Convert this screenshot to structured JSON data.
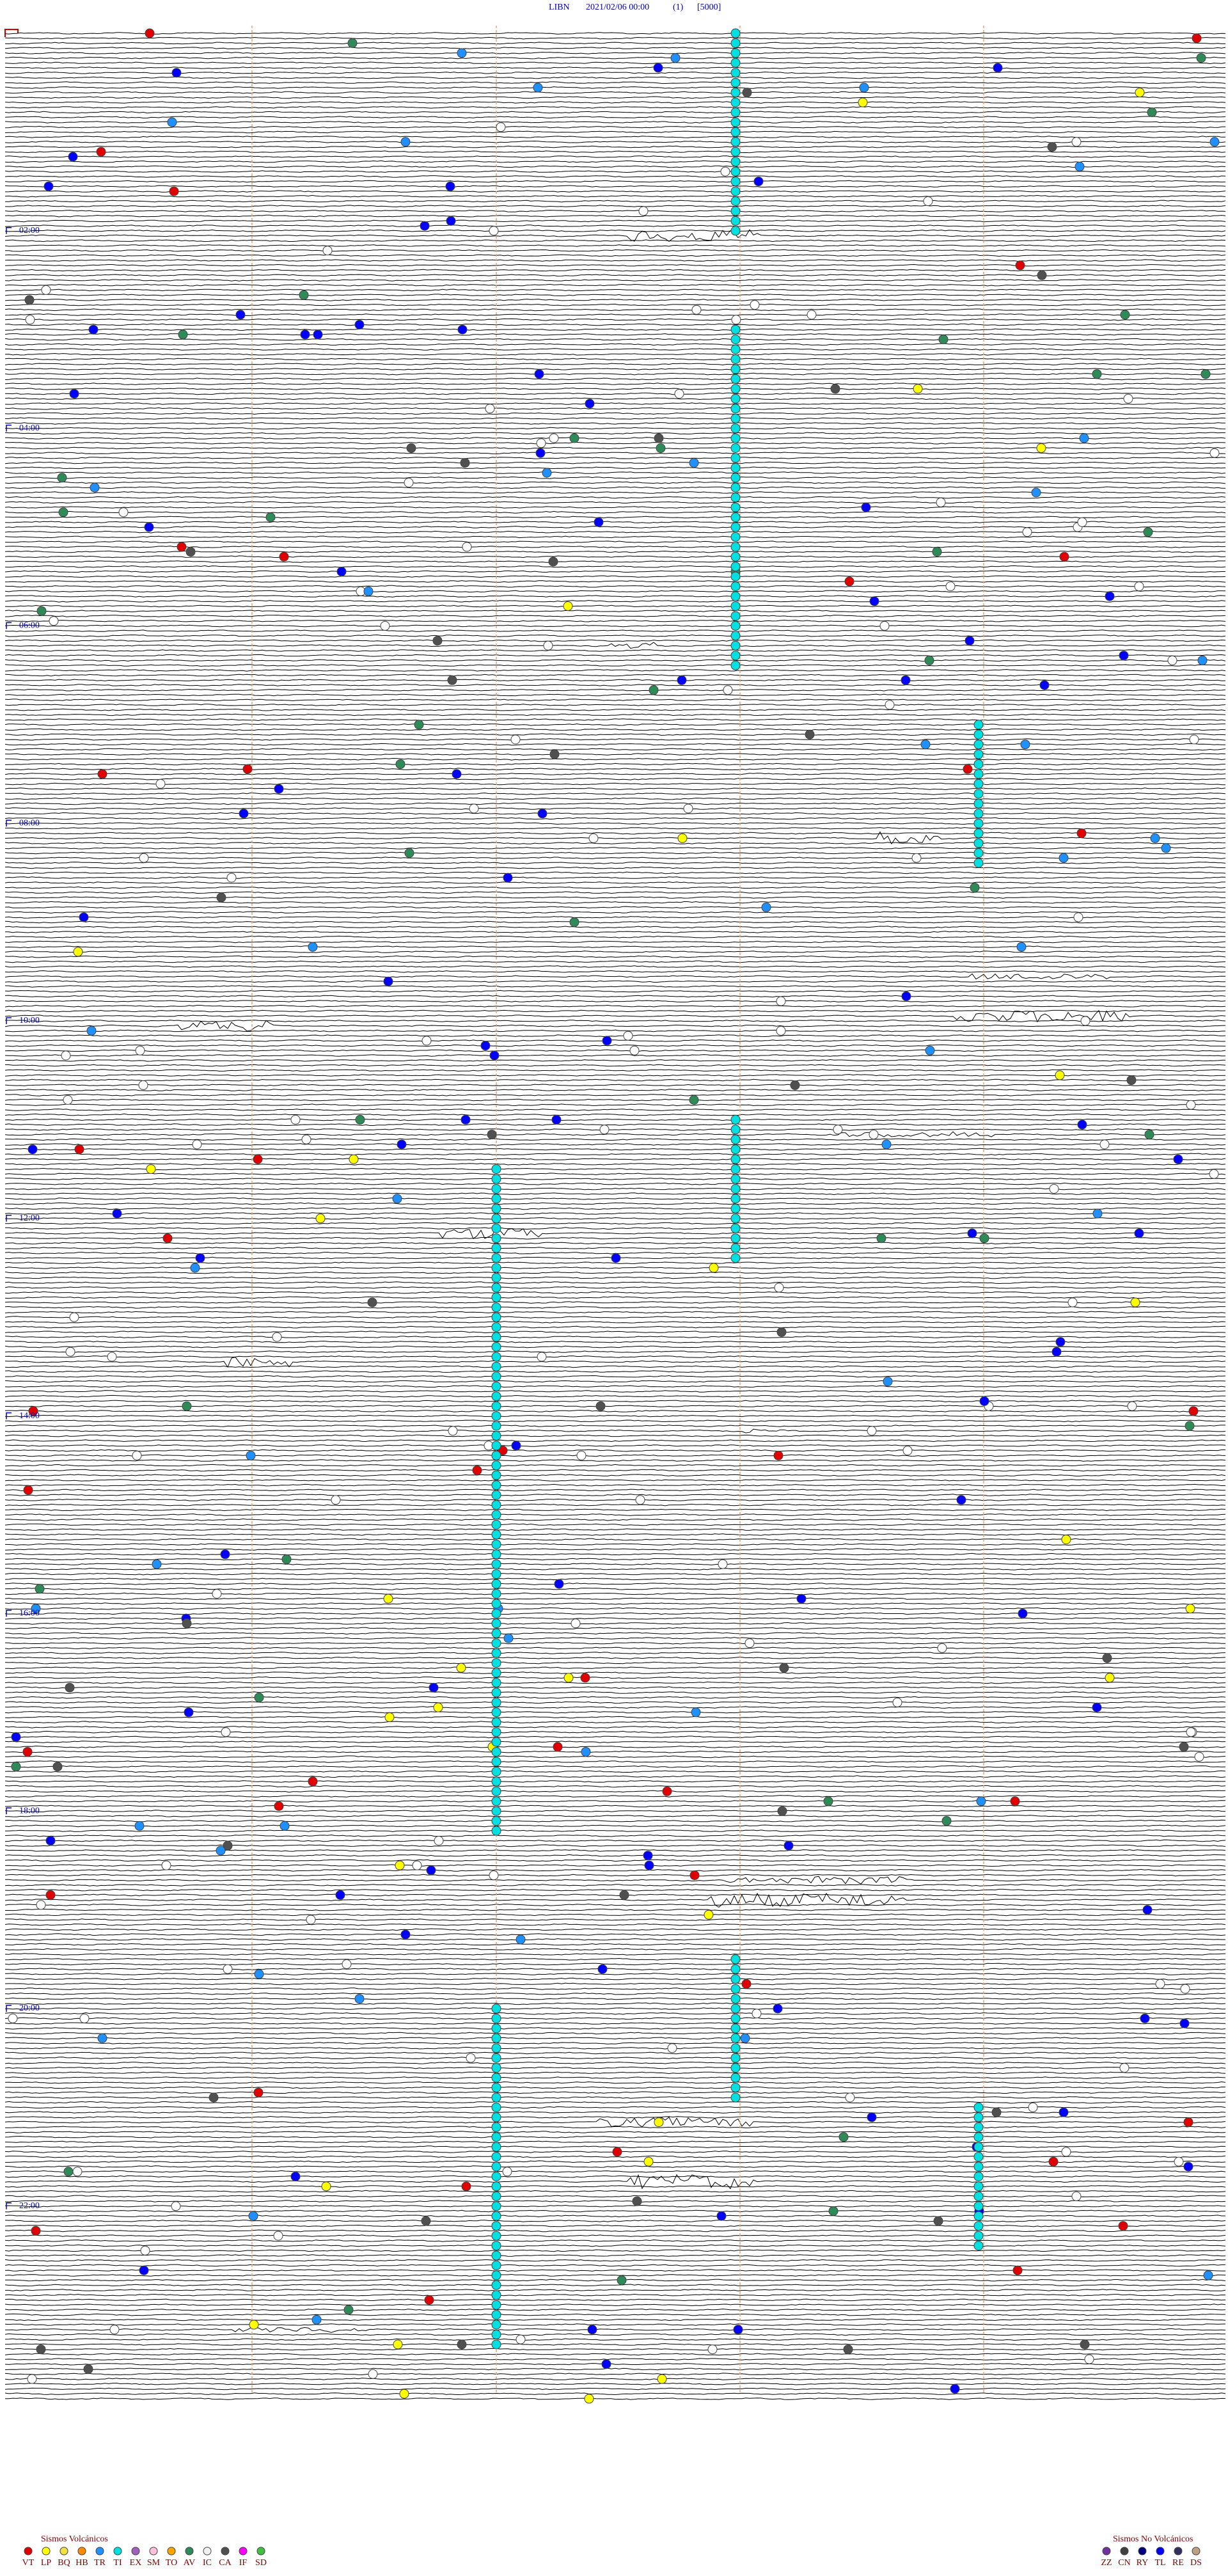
{
  "header": {
    "station": "LIBN",
    "datetime": "2021/02/06 00:00",
    "channel": "(1)",
    "scale": "[5000]"
  },
  "time_labels": [
    "02:00",
    "04:00",
    "06:00",
    "08:00",
    "10:00",
    "12:00",
    "14:00",
    "16:00",
    "18:00",
    "20:00",
    "22:00"
  ],
  "legend_volcanic": {
    "title": "Sismos Volcánicos",
    "items": [
      {
        "code": "VT",
        "color": "#e00000"
      },
      {
        "code": "LP",
        "color": "#ffff00"
      },
      {
        "code": "BQ",
        "color": "#f0e040"
      },
      {
        "code": "HB",
        "color": "#ff8c00"
      },
      {
        "code": "TR",
        "color": "#1e90ff"
      },
      {
        "code": "TI",
        "color": "#00e0e0"
      },
      {
        "code": "EX",
        "color": "#a060c0"
      },
      {
        "code": "SM",
        "color": "#ffc0e0"
      },
      {
        "code": "TO",
        "color": "#ffa500"
      },
      {
        "code": "AV",
        "color": "#2e8b57"
      },
      {
        "code": "IC",
        "color": "#f0f0f0"
      },
      {
        "code": "CA",
        "color": "#505050"
      },
      {
        "code": "IF",
        "color": "#ff00ff"
      },
      {
        "code": "SD",
        "color": "#40c040"
      }
    ]
  },
  "legend_nonvolcanic": {
    "title": "Sismos No Volcánicos",
    "items": [
      {
        "code": "ZZ",
        "color": "#7030a0"
      },
      {
        "code": "CN",
        "color": "#404040"
      },
      {
        "code": "RY",
        "color": "#000080"
      },
      {
        "code": "TL",
        "color": "#0000ff"
      },
      {
        "code": "RE",
        "color": "#303060"
      },
      {
        "code": "DS",
        "color": "#c0a080"
      }
    ]
  }
}
